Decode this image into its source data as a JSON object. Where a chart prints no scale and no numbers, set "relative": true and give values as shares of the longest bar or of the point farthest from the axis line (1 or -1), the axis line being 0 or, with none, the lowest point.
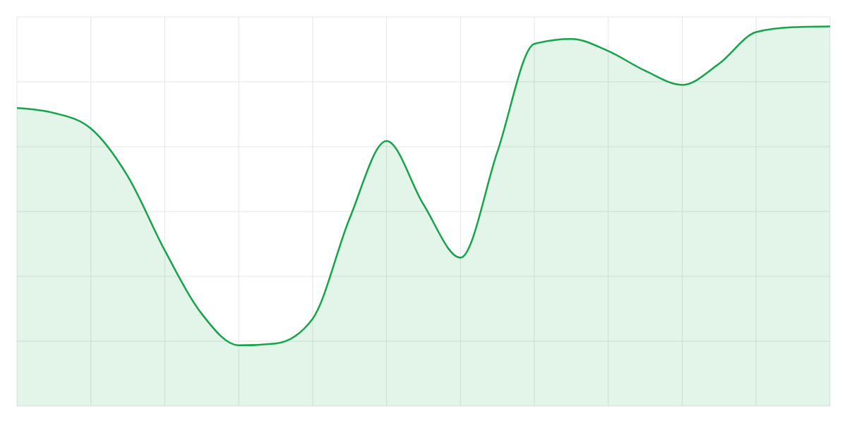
{
  "chart_data": {
    "type": "area",
    "relative": true,
    "grid": true,
    "color": "#16a34a",
    "categories": [
      null,
      null,
      null,
      null,
      null,
      null,
      null,
      null,
      null,
      null,
      null,
      null,
      null,
      null,
      null,
      null,
      null,
      null,
      null,
      null,
      null,
      null,
      null
    ],
    "values": [
      0.785,
      0.772,
      0.731,
      0.605,
      0.41,
      0.243,
      0.16,
      0.165,
      0.23,
      0.494,
      0.698,
      0.531,
      0.391,
      0.67,
      0.954,
      0.967,
      0.935,
      0.883,
      0.846,
      0.902,
      0.985,
      0.998,
      1
    ]
  }
}
